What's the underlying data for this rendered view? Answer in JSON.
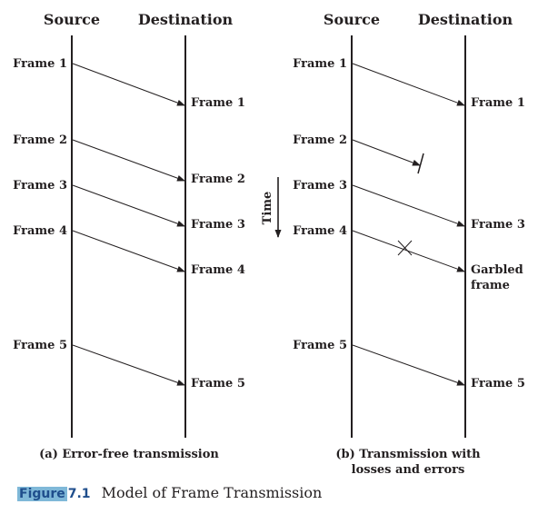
{
  "panels": [
    {
      "source_header": "Source",
      "destination_header": "Destination",
      "sent": [
        "Frame 1",
        "Frame 2",
        "Frame 3",
        "Frame 4",
        "Frame 5"
      ],
      "received": [
        "Frame 1",
        "Frame 2",
        "Frame 3",
        "Frame 4",
        "Frame 5"
      ],
      "caption": "(a) Error-free transmission"
    },
    {
      "source_header": "Source",
      "destination_header": "Destination",
      "sent": [
        "Frame 1",
        "Frame 2",
        "Frame 3",
        "Frame 4",
        "Frame 5"
      ],
      "received": [
        "Frame 1",
        "Frame 3",
        "Garbled",
        "frame",
        "Frame 5"
      ],
      "caption_line1": "(b) Transmission with",
      "caption_line2": "losses and errors"
    }
  ],
  "time_label": "Time",
  "figure": {
    "word": "Figure",
    "number": "7.1",
    "title": "Model of Frame Transmission"
  }
}
